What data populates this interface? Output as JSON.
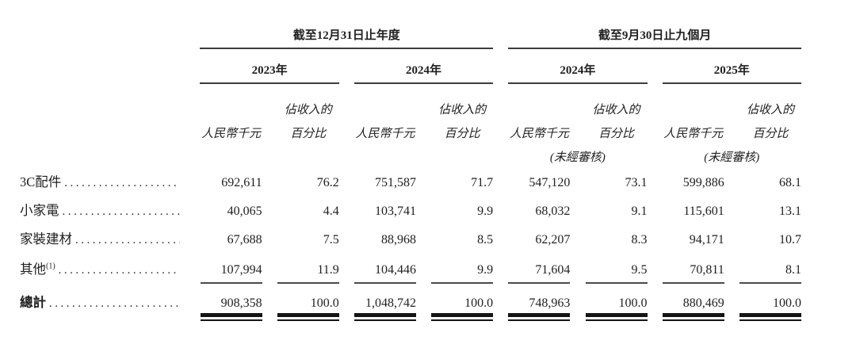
{
  "document": {
    "table": {
      "header": {
        "period_groups": [
          {
            "label": "截至12月31日止年度",
            "years": [
              {
                "label": "2023年"
              },
              {
                "label": "2024年"
              }
            ]
          },
          {
            "label": "截至9月30日止九個月",
            "years": [
              {
                "label": "2024年",
                "note": "(未經審核)"
              },
              {
                "label": "2025年",
                "note": "(未經審核)"
              }
            ]
          }
        ],
        "amount_unit_label": "人民幣千元",
        "percent_label_line1": "佔收入的",
        "percent_label_line2": "百分比"
      },
      "rows": [
        {
          "label": "3C配件",
          "values": [
            "692,611",
            "76.2",
            "751,587",
            "71.7",
            "547,120",
            "73.1",
            "599,886",
            "68.1"
          ]
        },
        {
          "label": "小家電",
          "values": [
            "40,065",
            "4.4",
            "103,741",
            "9.9",
            "68,032",
            "9.1",
            "115,601",
            "13.1"
          ]
        },
        {
          "label": "家裝建材",
          "values": [
            "67,688",
            "7.5",
            "88,968",
            "8.5",
            "62,207",
            "8.3",
            "94,171",
            "10.7"
          ]
        },
        {
          "label": "其他",
          "footnote": "(1)",
          "values": [
            "107,994",
            "11.9",
            "104,446",
            "9.9",
            "71,604",
            "9.5",
            "70,811",
            "8.1"
          ]
        }
      ],
      "total_row": {
        "label": "總計",
        "values": [
          "908,358",
          "100.0",
          "1,048,742",
          "100.0",
          "748,963",
          "100.0",
          "880,469",
          "100.0"
        ]
      }
    }
  },
  "colors": {
    "text": "#1f1f1f",
    "rule_thin": "#3c3c3c",
    "rule_thick": "#141414",
    "background": "#ffffff"
  }
}
